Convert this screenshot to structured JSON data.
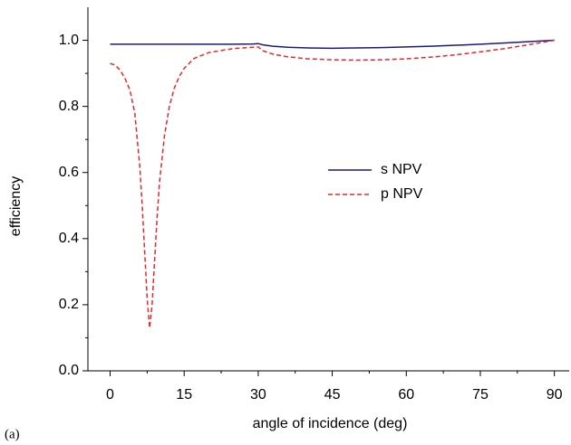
{
  "chart_data": {
    "type": "line",
    "x_label": "angle of incidence (deg)",
    "y_label": "efficiency",
    "panel_label": "(a)",
    "xlim": [
      -4.5,
      93
    ],
    "ylim": [
      0,
      1.1
    ],
    "xticks": [
      0,
      15,
      30,
      45,
      60,
      75,
      90
    ],
    "xminor": [
      7.5,
      22.5,
      37.5,
      52.5,
      67.5,
      82.5
    ],
    "yticks": [
      {
        "value": 0,
        "label": "0.0"
      },
      {
        "value": 0.2,
        "label": "0.2"
      },
      {
        "value": 0.4,
        "label": "0.4"
      },
      {
        "value": 0.6,
        "label": "0.6"
      },
      {
        "value": 0.8,
        "label": "0.8"
      },
      {
        "value": 1.0,
        "label": "1.0"
      }
    ],
    "yminor": [
      0.1,
      0.3,
      0.5,
      0.7,
      0.9
    ],
    "series": [
      {
        "name": "s NPV",
        "color": "#1a1a7a",
        "dash": "solid",
        "x": [
          0,
          5,
          10,
          15,
          20,
          25,
          29,
          30,
          31,
          33,
          36,
          40,
          45,
          50,
          55,
          60,
          65,
          70,
          75,
          80,
          85,
          90
        ],
        "values": [
          0.988,
          0.988,
          0.988,
          0.988,
          0.988,
          0.988,
          0.989,
          0.99,
          0.986,
          0.982,
          0.979,
          0.977,
          0.976,
          0.977,
          0.978,
          0.98,
          0.982,
          0.985,
          0.988,
          0.992,
          0.996,
          1.0
        ]
      },
      {
        "name": "p NPV",
        "color": "#e8262b",
        "dash": "dashed",
        "x": [
          0,
          1,
          2,
          3,
          4,
          5,
          6,
          6.5,
          7,
          7.5,
          8,
          8.5,
          9,
          9.5,
          10,
          11,
          12,
          13,
          14,
          15,
          17,
          20,
          25,
          30,
          31,
          33,
          36,
          40,
          45,
          50,
          55,
          60,
          65,
          70,
          75,
          80,
          85,
          90
        ],
        "values": [
          0.93,
          0.925,
          0.91,
          0.885,
          0.85,
          0.78,
          0.62,
          0.5,
          0.36,
          0.22,
          0.13,
          0.2,
          0.33,
          0.46,
          0.57,
          0.71,
          0.8,
          0.855,
          0.89,
          0.915,
          0.945,
          0.963,
          0.975,
          0.98,
          0.968,
          0.958,
          0.95,
          0.944,
          0.941,
          0.94,
          0.941,
          0.944,
          0.949,
          0.956,
          0.965,
          0.975,
          0.987,
          1.0
        ]
      }
    ],
    "legend": "center-right"
  }
}
